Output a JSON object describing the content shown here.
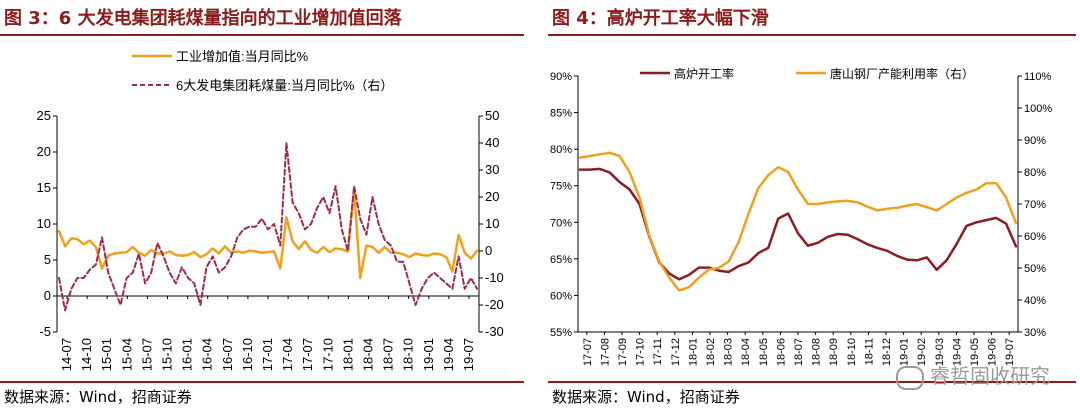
{
  "left": {
    "title": "图 3：6 大发电集团耗煤量指向的工业增加值回落",
    "source": "数据来源：Wind，招商证券"
  },
  "right": {
    "title": "图 4：高炉开工率大幅下滑",
    "source": "数据来源：Wind，招商证券"
  },
  "watermark": {
    "icon": "wechat-icon",
    "text": "睿哲固收研究"
  },
  "chart_data": [
    {
      "type": "line",
      "x_ticks": [
        "14-07",
        "14-10",
        "15-01",
        "15-04",
        "15-07",
        "15-10",
        "16-01",
        "16-04",
        "16-07",
        "16-10",
        "17-01",
        "17-04",
        "17-07",
        "17-10",
        "18-01",
        "18-04",
        "18-07",
        "18-10",
        "19-01",
        "19-04",
        "19-07"
      ],
      "ylim": [
        -5,
        25
      ],
      "y2lim": [
        -30,
        50
      ],
      "y_ticks": [
        "-5",
        "0",
        "5",
        "10",
        "15",
        "20",
        "25"
      ],
      "y2_ticks": [
        "-30",
        "-20",
        "-10",
        "0",
        "10",
        "20",
        "30",
        "40",
        "50"
      ],
      "series": [
        {
          "name": "工业增加值:当月同比%",
          "axis": "left",
          "color": "#f0a020",
          "style": "solid",
          "values": [
            9,
            6.9,
            8,
            7.9,
            7.2,
            7.7,
            6.8,
            3.8,
            5.6,
            5.9,
            6,
            6.1,
            6.8,
            6,
            5.6,
            6.4,
            5.9,
            5.9,
            6.2,
            5.7,
            5.6,
            5.7,
            6.1,
            5.4,
            5.8,
            6.6,
            5.9,
            6.9,
            6,
            6.2,
            6,
            6.3,
            6.2,
            6,
            6.1,
            6.2,
            3.8,
            10.9,
            7.6,
            6.5,
            7.6,
            6.4,
            6,
            6.8,
            6.1,
            6.6,
            6.5,
            6.2,
            14.8,
            2.5,
            7,
            6.8,
            6,
            6.8,
            6,
            6,
            5.8,
            5.4,
            5.9,
            5.7,
            5.6,
            5.9,
            5.8,
            5.4,
            3.4,
            8.5,
            6,
            5.2,
            6.3
          ]
        },
        {
          "name": "6大发电集团耗煤量:当月同比%（右）",
          "axis": "right",
          "color": "#9a2d4a",
          "style": "dashed",
          "values": [
            -10,
            -22,
            -14,
            -10,
            -10,
            -7,
            -5,
            5,
            -8,
            -14,
            -20,
            -10,
            -8,
            -1,
            -12,
            -8,
            3,
            -2,
            -8,
            -12,
            -6,
            -10,
            -12,
            -20,
            -6,
            -2,
            -8,
            -6,
            -2,
            5,
            8,
            9,
            9,
            12,
            8,
            10,
            2,
            40,
            18,
            14,
            8,
            10,
            16,
            20,
            14,
            24,
            8,
            0,
            24,
            12,
            6,
            20,
            10,
            4,
            2,
            -4,
            -4,
            -12,
            -20,
            -14,
            -10,
            -8,
            -10,
            -12,
            -14,
            -2,
            -14,
            -10,
            -14
          ]
        }
      ]
    },
    {
      "type": "line",
      "x_ticks": [
        "17-07",
        "17-08",
        "17-09",
        "17-10",
        "17-11",
        "17-12",
        "18-01",
        "18-02",
        "18-03",
        "18-04",
        "18-05",
        "18-06",
        "18-07",
        "18-08",
        "18-09",
        "18-10",
        "18-11",
        "18-12",
        "19-01",
        "19-02",
        "19-03",
        "19-04",
        "19-05",
        "19-06",
        "19-07"
      ],
      "ylim": [
        55,
        90
      ],
      "y2lim": [
        30,
        110
      ],
      "y_ticks": [
        "55%",
        "60%",
        "65%",
        "70%",
        "75%",
        "80%",
        "85%",
        "90%"
      ],
      "y2_ticks": [
        "30%",
        "40%",
        "50%",
        "60%",
        "70%",
        "80%",
        "90%",
        "100%",
        "110%"
      ],
      "series": [
        {
          "name": "高炉开工率",
          "axis": "left",
          "color": "#8b1c24",
          "style": "solid",
          "values": [
            77.2,
            77.2,
            77.3,
            76.8,
            75.5,
            74.5,
            72.5,
            68,
            64.5,
            63,
            62.2,
            62.8,
            63.8,
            63.8,
            63.4,
            63.2,
            64,
            64.5,
            65.8,
            66.5,
            70.5,
            71.2,
            68.5,
            66.8,
            67.2,
            68,
            68.4,
            68.3,
            67.7,
            67,
            66.5,
            66.1,
            65.4,
            64.9,
            64.8,
            65.2,
            63.5,
            64.8,
            67,
            69.5,
            70,
            70.3,
            70.6,
            69.8,
            66.7
          ]
        },
        {
          "name": "唐山钢厂产能利用率（右）",
          "axis": "right",
          "color": "#f0a020",
          "style": "solid",
          "values": [
            84.5,
            85,
            85.5,
            86,
            85,
            80,
            72,
            60,
            52,
            47,
            43,
            44,
            47,
            49.5,
            50,
            52,
            58,
            67,
            75,
            79,
            81.5,
            80,
            74.5,
            70,
            70,
            70.5,
            70.8,
            71,
            70.5,
            69.2,
            68,
            68.5,
            68.8,
            69.5,
            70,
            69,
            68,
            70,
            72,
            73.5,
            74.5,
            76.5,
            76.5,
            72,
            64
          ]
        }
      ]
    }
  ]
}
